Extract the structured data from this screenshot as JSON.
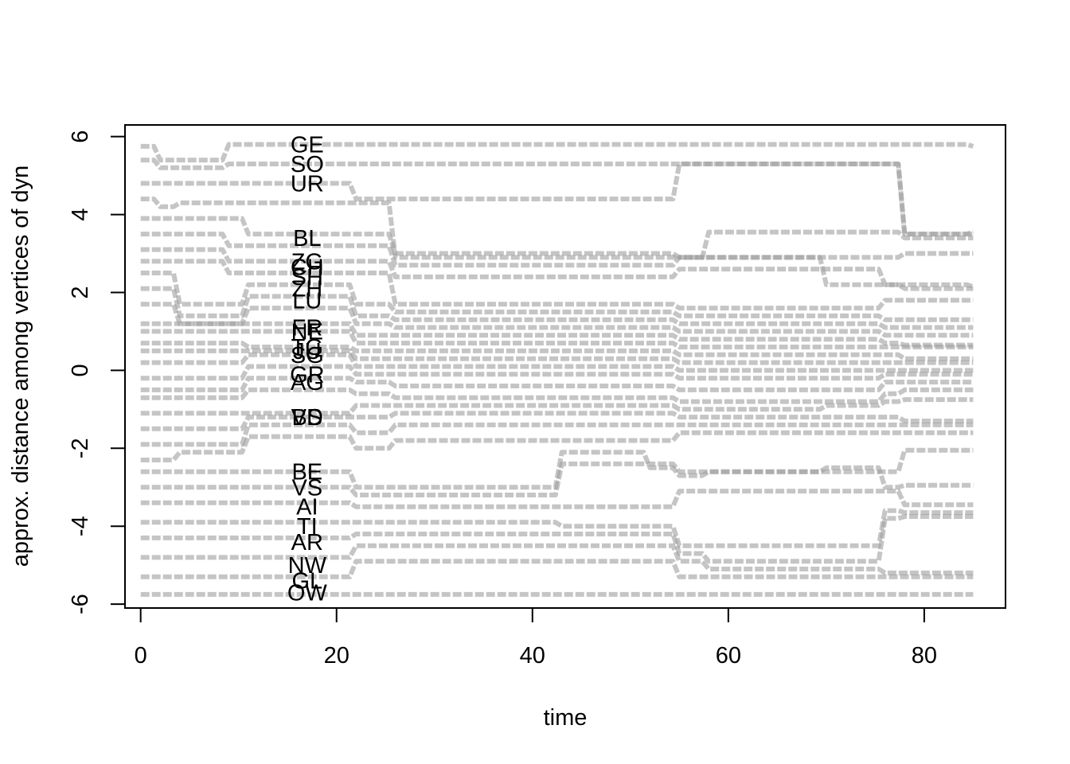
{
  "chart_data": {
    "type": "line",
    "title": "",
    "xlabel": "time",
    "ylabel": "approx. distance among vertices of dyn",
    "xlim": [
      -1.6,
      88.3
    ],
    "ylim": [
      -6.1,
      6.3
    ],
    "xticks": [
      "0",
      "20",
      "40",
      "60",
      "80"
    ],
    "yticks": [
      "-6",
      "-4",
      "-2",
      "0",
      "2",
      "4",
      "6"
    ],
    "grid": false,
    "legend": "none",
    "line_color": "#9e9e9e",
    "breakpoints": [
      0,
      2,
      4,
      9,
      11,
      20,
      22,
      26,
      28,
      41,
      43,
      52,
      54,
      55,
      58,
      68,
      70,
      74,
      76,
      78,
      85
    ],
    "vertex_labels": [
      {
        "text": "GE",
        "x": 17,
        "y": 5.8
      },
      {
        "text": "SO",
        "x": 17,
        "y": 5.3
      },
      {
        "text": "UR",
        "x": 17,
        "y": 4.8
      },
      {
        "text": "BL",
        "x": 17,
        "y": 3.4
      },
      {
        "text": "ZG",
        "x": 17,
        "y": 2.8
      },
      {
        "text": "CH",
        "x": 17,
        "y": 2.65
      },
      {
        "text": "SH",
        "x": 17,
        "y": 2.4
      },
      {
        "text": "ZH",
        "x": 17,
        "y": 2.1
      },
      {
        "text": "LU",
        "x": 17,
        "y": 1.8
      },
      {
        "text": "FR",
        "x": 17,
        "y": 1.1
      },
      {
        "text": "NE",
        "x": 17,
        "y": 1.0
      },
      {
        "text": "TG",
        "x": 17,
        "y": 0.6
      },
      {
        "text": "JU",
        "x": 17,
        "y": 0.5
      },
      {
        "text": "SG",
        "x": 17,
        "y": 0.4
      },
      {
        "text": "GR",
        "x": 17,
        "y": -0.1
      },
      {
        "text": "AG",
        "x": 17,
        "y": -0.3
      },
      {
        "text": "VD",
        "x": 17,
        "y": -1.2
      },
      {
        "text": "BS",
        "x": 17,
        "y": -1.2
      },
      {
        "text": "BE",
        "x": 17,
        "y": -2.6
      },
      {
        "text": "VS",
        "x": 17,
        "y": -3.0
      },
      {
        "text": "AI",
        "x": 17,
        "y": -3.5
      },
      {
        "text": "TI",
        "x": 17,
        "y": -4.0
      },
      {
        "text": "AR",
        "x": 17,
        "y": -4.4
      },
      {
        "text": "NW",
        "x": 17,
        "y": -5.0
      },
      {
        "text": "GL",
        "x": 17,
        "y": -5.4
      },
      {
        "text": "OW",
        "x": 17,
        "y": -5.7
      }
    ],
    "series": [
      {
        "values": [
          5.75,
          5.4,
          5.4,
          5.8,
          5.8,
          5.8,
          5.8,
          5.8,
          5.8,
          5.8,
          5.8,
          5.8,
          5.8,
          5.8,
          5.8,
          5.8,
          5.8,
          5.8,
          5.8,
          5.8,
          5.75
        ]
      },
      {
        "values": [
          5.4,
          5.2,
          5.2,
          5.3,
          5.3,
          5.3,
          5.3,
          5.3,
          5.3,
          5.3,
          5.3,
          5.3,
          5.3,
          5.3,
          5.3,
          5.3,
          5.3,
          5.3,
          5.3,
          3.5,
          3.5
        ]
      },
      {
        "values": [
          4.8,
          4.8,
          4.8,
          4.8,
          4.8,
          4.8,
          4.4,
          4.4,
          4.4,
          4.4,
          4.4,
          4.4,
          4.4,
          5.3,
          5.3,
          5.3,
          5.3,
          5.3,
          5.3,
          3.5,
          3.55
        ]
      },
      {
        "values": [
          4.4,
          4.2,
          4.3,
          4.3,
          4.3,
          4.3,
          4.3,
          2.9,
          2.9,
          2.9,
          2.9,
          2.9,
          2.9,
          2.9,
          3.55,
          3.55,
          3.55,
          3.55,
          3.55,
          3.4,
          3.4
        ]
      },
      {
        "values": [
          3.9,
          3.9,
          3.9,
          3.9,
          3.5,
          3.5,
          3.5,
          3.0,
          3.0,
          3.0,
          3.0,
          3.0,
          3.0,
          2.9,
          2.9,
          2.9,
          2.9,
          2.9,
          2.9,
          3.0,
          3.0
        ]
      },
      {
        "values": [
          3.5,
          3.5,
          3.5,
          3.2,
          3.2,
          3.2,
          3.2,
          2.7,
          2.7,
          2.7,
          2.7,
          2.7,
          2.7,
          2.9,
          2.9,
          2.9,
          2.2,
          2.2,
          2.2,
          2.2,
          2.15
        ]
      },
      {
        "values": [
          3.1,
          3.1,
          3.1,
          2.8,
          2.8,
          2.8,
          2.8,
          2.4,
          2.4,
          2.4,
          2.4,
          2.4,
          2.4,
          2.6,
          2.6,
          2.6,
          2.6,
          2.6,
          2.2,
          2.1,
          2.1
        ]
      },
      {
        "values": [
          2.8,
          2.8,
          2.8,
          2.5,
          2.5,
          2.5,
          2.5,
          1.7,
          1.7,
          1.7,
          1.7,
          1.7,
          1.7,
          1.6,
          1.6,
          1.6,
          1.6,
          1.6,
          1.8,
          1.8,
          1.8
        ]
      },
      {
        "values": [
          2.5,
          2.5,
          1.7,
          1.7,
          2.2,
          2.2,
          1.7,
          1.5,
          1.5,
          1.5,
          1.5,
          1.5,
          1.5,
          1.4,
          1.4,
          1.4,
          1.4,
          1.4,
          1.3,
          1.3,
          1.3
        ]
      },
      {
        "values": [
          2.1,
          2.1,
          1.4,
          1.4,
          1.9,
          1.9,
          1.4,
          1.3,
          1.3,
          1.3,
          1.3,
          1.3,
          1.3,
          1.2,
          1.2,
          1.2,
          1.2,
          1.2,
          1.1,
          1.1,
          1.1
        ]
      },
      {
        "values": [
          1.7,
          1.7,
          1.2,
          1.2,
          1.6,
          1.6,
          1.2,
          1.1,
          1.1,
          1.1,
          1.1,
          1.1,
          1.1,
          1.0,
          1.0,
          1.0,
          1.0,
          1.0,
          0.9,
          0.9,
          0.9
        ]
      },
      {
        "values": [
          1.2,
          1.2,
          1.2,
          1.2,
          1.2,
          1.2,
          0.9,
          0.9,
          0.9,
          0.9,
          0.9,
          0.9,
          0.9,
          0.8,
          0.8,
          0.8,
          0.8,
          0.8,
          0.7,
          0.65,
          0.65
        ]
      },
      {
        "values": [
          1.0,
          1.0,
          1.0,
          1.0,
          1.0,
          1.0,
          0.7,
          0.7,
          0.7,
          0.7,
          0.7,
          0.7,
          0.7,
          0.6,
          0.6,
          0.6,
          0.6,
          0.6,
          0.6,
          0.6,
          0.6
        ]
      },
      {
        "values": [
          0.7,
          0.7,
          0.7,
          0.7,
          0.6,
          0.6,
          0.5,
          0.5,
          0.5,
          0.5,
          0.5,
          0.5,
          0.5,
          0.4,
          0.4,
          0.4,
          0.4,
          0.4,
          0.4,
          0.3,
          0.3
        ]
      },
      {
        "values": [
          0.5,
          0.5,
          0.5,
          0.5,
          0.5,
          0.5,
          0.3,
          0.3,
          0.3,
          0.3,
          0.3,
          0.3,
          0.3,
          0.2,
          0.2,
          0.2,
          0.2,
          0.2,
          0.2,
          0.2,
          0.2
        ]
      },
      {
        "values": [
          0.2,
          0.2,
          0.2,
          0.2,
          0.4,
          0.4,
          0.1,
          0.1,
          0.1,
          0.1,
          0.1,
          0.1,
          0.1,
          0.0,
          0.0,
          0.0,
          0.0,
          0.0,
          0.0,
          0.0,
          0.0
        ]
      },
      {
        "values": [
          -0.2,
          -0.2,
          -0.2,
          -0.2,
          0.1,
          0.1,
          -0.1,
          -0.1,
          -0.1,
          -0.1,
          -0.1,
          -0.1,
          -0.1,
          -0.2,
          -0.2,
          -0.2,
          -0.2,
          -0.2,
          -0.1,
          -0.1,
          -0.1
        ]
      },
      {
        "values": [
          -0.5,
          -0.5,
          -0.5,
          -0.5,
          -0.2,
          -0.2,
          -0.3,
          -0.4,
          -0.4,
          -0.4,
          -0.4,
          -0.4,
          -0.4,
          -0.5,
          -0.5,
          -0.5,
          -0.5,
          -0.5,
          -0.3,
          -0.3,
          -0.3
        ]
      },
      {
        "values": [
          -0.7,
          -0.7,
          -0.7,
          -0.7,
          -0.5,
          -0.5,
          -0.6,
          -0.7,
          -0.7,
          -0.7,
          -0.7,
          -0.7,
          -0.7,
          -0.8,
          -0.8,
          -0.8,
          -0.8,
          -0.8,
          -0.6,
          -0.5,
          -0.5
        ]
      },
      {
        "values": [
          -1.1,
          -1.1,
          -1.1,
          -1.1,
          -1.1,
          -1.1,
          -0.9,
          -0.9,
          -0.9,
          -0.9,
          -0.9,
          -0.9,
          -0.9,
          -1.0,
          -1.0,
          -1.0,
          -0.9,
          -0.9,
          -0.8,
          -0.75,
          -0.75
        ]
      },
      {
        "values": [
          -1.5,
          -1.5,
          -1.5,
          -1.5,
          -1.2,
          -1.2,
          -1.2,
          -1.1,
          -1.1,
          -1.1,
          -1.1,
          -1.1,
          -1.1,
          -1.2,
          -1.2,
          -1.2,
          -1.2,
          -1.2,
          -1.2,
          -1.3,
          -1.3
        ]
      },
      {
        "values": [
          -1.9,
          -1.9,
          -1.9,
          -1.9,
          -1.4,
          -1.4,
          -1.6,
          -1.4,
          -1.4,
          -1.4,
          -1.4,
          -1.4,
          -1.4,
          -1.4,
          -1.4,
          -1.4,
          -1.4,
          -1.4,
          -1.4,
          -1.4,
          -1.4
        ]
      },
      {
        "values": [
          -2.3,
          -2.3,
          -2.1,
          -2.1,
          -1.7,
          -1.7,
          -2.0,
          -1.8,
          -1.8,
          -1.8,
          -1.8,
          -1.8,
          -1.8,
          -1.6,
          -1.6,
          -1.6,
          -1.6,
          -1.6,
          -1.6,
          -1.6,
          -1.6
        ]
      },
      {
        "values": [
          -2.6,
          -2.6,
          -2.6,
          -2.6,
          -2.6,
          -2.6,
          -3.0,
          -3.0,
          -3.0,
          -3.0,
          -2.1,
          -2.5,
          -2.5,
          -2.7,
          -2.6,
          -2.6,
          -2.6,
          -2.6,
          -2.6,
          -2.05,
          -2.05
        ]
      },
      {
        "values": [
          -3.0,
          -3.0,
          -3.0,
          -3.0,
          -3.0,
          -3.0,
          -3.2,
          -3.2,
          -3.2,
          -3.2,
          -2.4,
          -2.4,
          -2.4,
          -2.6,
          -2.6,
          -2.6,
          -2.5,
          -2.5,
          -3.0,
          -2.95,
          -2.95
        ]
      },
      {
        "values": [
          -3.4,
          -3.4,
          -3.4,
          -3.4,
          -3.4,
          -3.4,
          -3.5,
          -3.5,
          -3.5,
          -3.5,
          -3.5,
          -3.5,
          -3.5,
          -3.1,
          -3.1,
          -3.1,
          -3.1,
          -3.1,
          -3.1,
          -3.45,
          -3.45
        ]
      },
      {
        "values": [
          -3.9,
          -3.9,
          -3.9,
          -3.9,
          -3.9,
          -3.9,
          -3.9,
          -3.9,
          -3.9,
          -3.9,
          -4.0,
          -4.0,
          -4.0,
          -4.5,
          -4.5,
          -4.5,
          -4.5,
          -4.5,
          -3.6,
          -3.65,
          -3.65
        ]
      },
      {
        "values": [
          -4.3,
          -4.3,
          -4.3,
          -4.3,
          -4.3,
          -4.3,
          -4.2,
          -4.2,
          -4.2,
          -4.2,
          -4.2,
          -4.2,
          -4.2,
          -4.7,
          -4.9,
          -4.9,
          -4.9,
          -4.9,
          -3.8,
          -3.75,
          -3.75
        ]
      },
      {
        "values": [
          -4.8,
          -4.8,
          -4.8,
          -4.8,
          -4.8,
          -4.8,
          -4.5,
          -4.5,
          -4.5,
          -4.5,
          -4.5,
          -4.5,
          -4.5,
          -4.9,
          -5.1,
          -5.1,
          -5.1,
          -5.1,
          -5.2,
          -5.2,
          -5.2
        ]
      },
      {
        "values": [
          -5.3,
          -5.3,
          -5.3,
          -5.3,
          -5.3,
          -5.3,
          -4.9,
          -4.9,
          -4.9,
          -4.9,
          -4.9,
          -4.9,
          -4.9,
          -5.3,
          -5.3,
          -5.3,
          -5.3,
          -5.3,
          -5.3,
          -5.3,
          -5.3
        ]
      },
      {
        "values": [
          -5.75,
          -5.75,
          -5.75,
          -5.75,
          -5.75,
          -5.75,
          -5.75,
          -5.75,
          -5.75,
          -5.75,
          -5.75,
          -5.75,
          -5.75,
          -5.75,
          -5.75,
          -5.75,
          -5.75,
          -5.75,
          -5.75,
          -5.75,
          -5.75
        ]
      }
    ]
  }
}
